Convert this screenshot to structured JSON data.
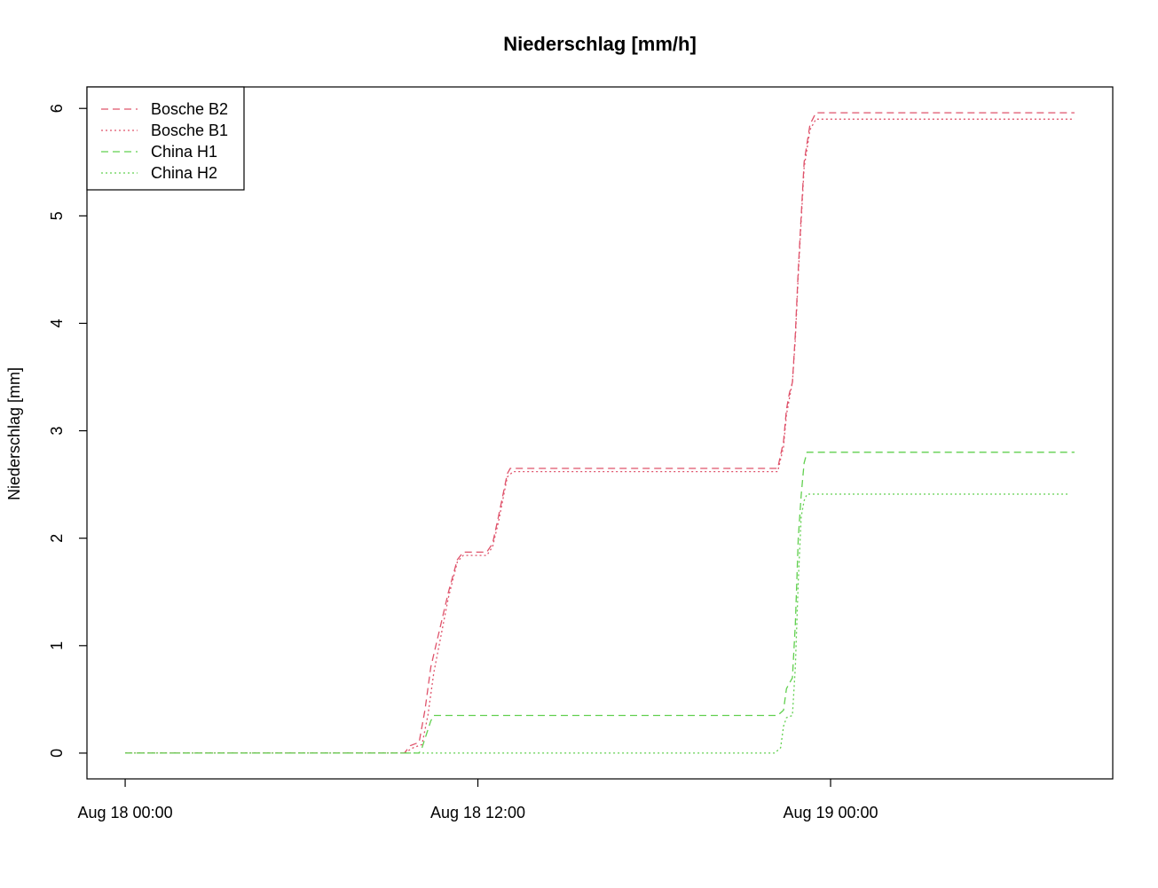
{
  "chart_data": {
    "type": "line",
    "title": "Niederschlag [mm/h]",
    "xlabel": "",
    "ylabel": "Niederschlag [mm]",
    "x_unit": "hours since Aug 18 00:00",
    "xlim": [
      -1.3,
      33.6
    ],
    "ylim": [
      -0.24,
      6.2
    ],
    "x_ticks": [
      {
        "value": 0,
        "label": "Aug 18 00:00"
      },
      {
        "value": 12,
        "label": "Aug 18 12:00"
      },
      {
        "value": 24,
        "label": "Aug 19 00:00"
      }
    ],
    "y_ticks": [
      {
        "value": 0,
        "label": "0"
      },
      {
        "value": 1,
        "label": "1"
      },
      {
        "value": 2,
        "label": "2"
      },
      {
        "value": 3,
        "label": "3"
      },
      {
        "value": 4,
        "label": "4"
      },
      {
        "value": 5,
        "label": "5"
      },
      {
        "value": 6,
        "label": "6"
      }
    ],
    "grid": false,
    "legend_position": "top-left",
    "series": [
      {
        "name": "Bosche B2",
        "color": "#DF536B",
        "dash": "dashed",
        "points": [
          [
            0,
            0
          ],
          [
            9.5,
            0
          ],
          [
            9.7,
            0.07
          ],
          [
            10.0,
            0.1
          ],
          [
            10.2,
            0.4
          ],
          [
            10.4,
            0.8
          ],
          [
            11.0,
            1.5
          ],
          [
            11.3,
            1.8
          ],
          [
            11.5,
            1.87
          ],
          [
            12.3,
            1.87
          ],
          [
            12.5,
            1.95
          ],
          [
            12.7,
            2.2
          ],
          [
            13.0,
            2.6
          ],
          [
            13.1,
            2.65
          ],
          [
            22.2,
            2.65
          ],
          [
            22.4,
            2.9
          ],
          [
            22.5,
            3.2
          ],
          [
            22.6,
            3.35
          ],
          [
            22.7,
            3.45
          ],
          [
            22.8,
            3.9
          ],
          [
            22.9,
            4.5
          ],
          [
            23.0,
            5.0
          ],
          [
            23.1,
            5.5
          ],
          [
            23.3,
            5.85
          ],
          [
            23.5,
            5.96
          ],
          [
            32.3,
            5.96
          ]
        ]
      },
      {
        "name": "Bosche B1",
        "color": "#DF536B",
        "dash": "dotted",
        "points": [
          [
            0,
            0
          ],
          [
            9.5,
            0
          ],
          [
            9.8,
            0.05
          ],
          [
            10.1,
            0.08
          ],
          [
            10.3,
            0.35
          ],
          [
            10.5,
            0.75
          ],
          [
            11.0,
            1.45
          ],
          [
            11.3,
            1.78
          ],
          [
            11.5,
            1.84
          ],
          [
            12.3,
            1.84
          ],
          [
            12.5,
            1.92
          ],
          [
            12.7,
            2.15
          ],
          [
            13.0,
            2.57
          ],
          [
            13.2,
            2.62
          ],
          [
            22.2,
            2.62
          ],
          [
            22.4,
            2.85
          ],
          [
            22.5,
            3.15
          ],
          [
            22.6,
            3.3
          ],
          [
            22.7,
            3.45
          ],
          [
            22.8,
            3.85
          ],
          [
            22.9,
            4.45
          ],
          [
            23.0,
            4.95
          ],
          [
            23.1,
            5.45
          ],
          [
            23.3,
            5.8
          ],
          [
            23.5,
            5.9
          ],
          [
            32.3,
            5.9
          ]
        ]
      },
      {
        "name": "China H1",
        "color": "#61D04F",
        "dash": "dashed",
        "points": [
          [
            0,
            0
          ],
          [
            10.0,
            0
          ],
          [
            10.1,
            0.05
          ],
          [
            10.4,
            0.3
          ],
          [
            10.5,
            0.35
          ],
          [
            22.2,
            0.35
          ],
          [
            22.4,
            0.4
          ],
          [
            22.5,
            0.6
          ],
          [
            22.6,
            0.65
          ],
          [
            22.7,
            0.7
          ],
          [
            22.8,
            1.2
          ],
          [
            22.9,
            2.0
          ],
          [
            23.0,
            2.4
          ],
          [
            23.1,
            2.7
          ],
          [
            23.2,
            2.8
          ],
          [
            32.3,
            2.8
          ]
        ]
      },
      {
        "name": "China H2",
        "color": "#61D04F",
        "dash": "dotted",
        "points": [
          [
            0,
            0
          ],
          [
            22.1,
            0
          ],
          [
            22.3,
            0.05
          ],
          [
            22.4,
            0.25
          ],
          [
            22.5,
            0.33
          ],
          [
            22.7,
            0.35
          ],
          [
            22.8,
            0.8
          ],
          [
            22.9,
            1.6
          ],
          [
            23.0,
            2.2
          ],
          [
            23.1,
            2.35
          ],
          [
            23.2,
            2.41
          ],
          [
            32.1,
            2.41
          ]
        ]
      }
    ]
  }
}
